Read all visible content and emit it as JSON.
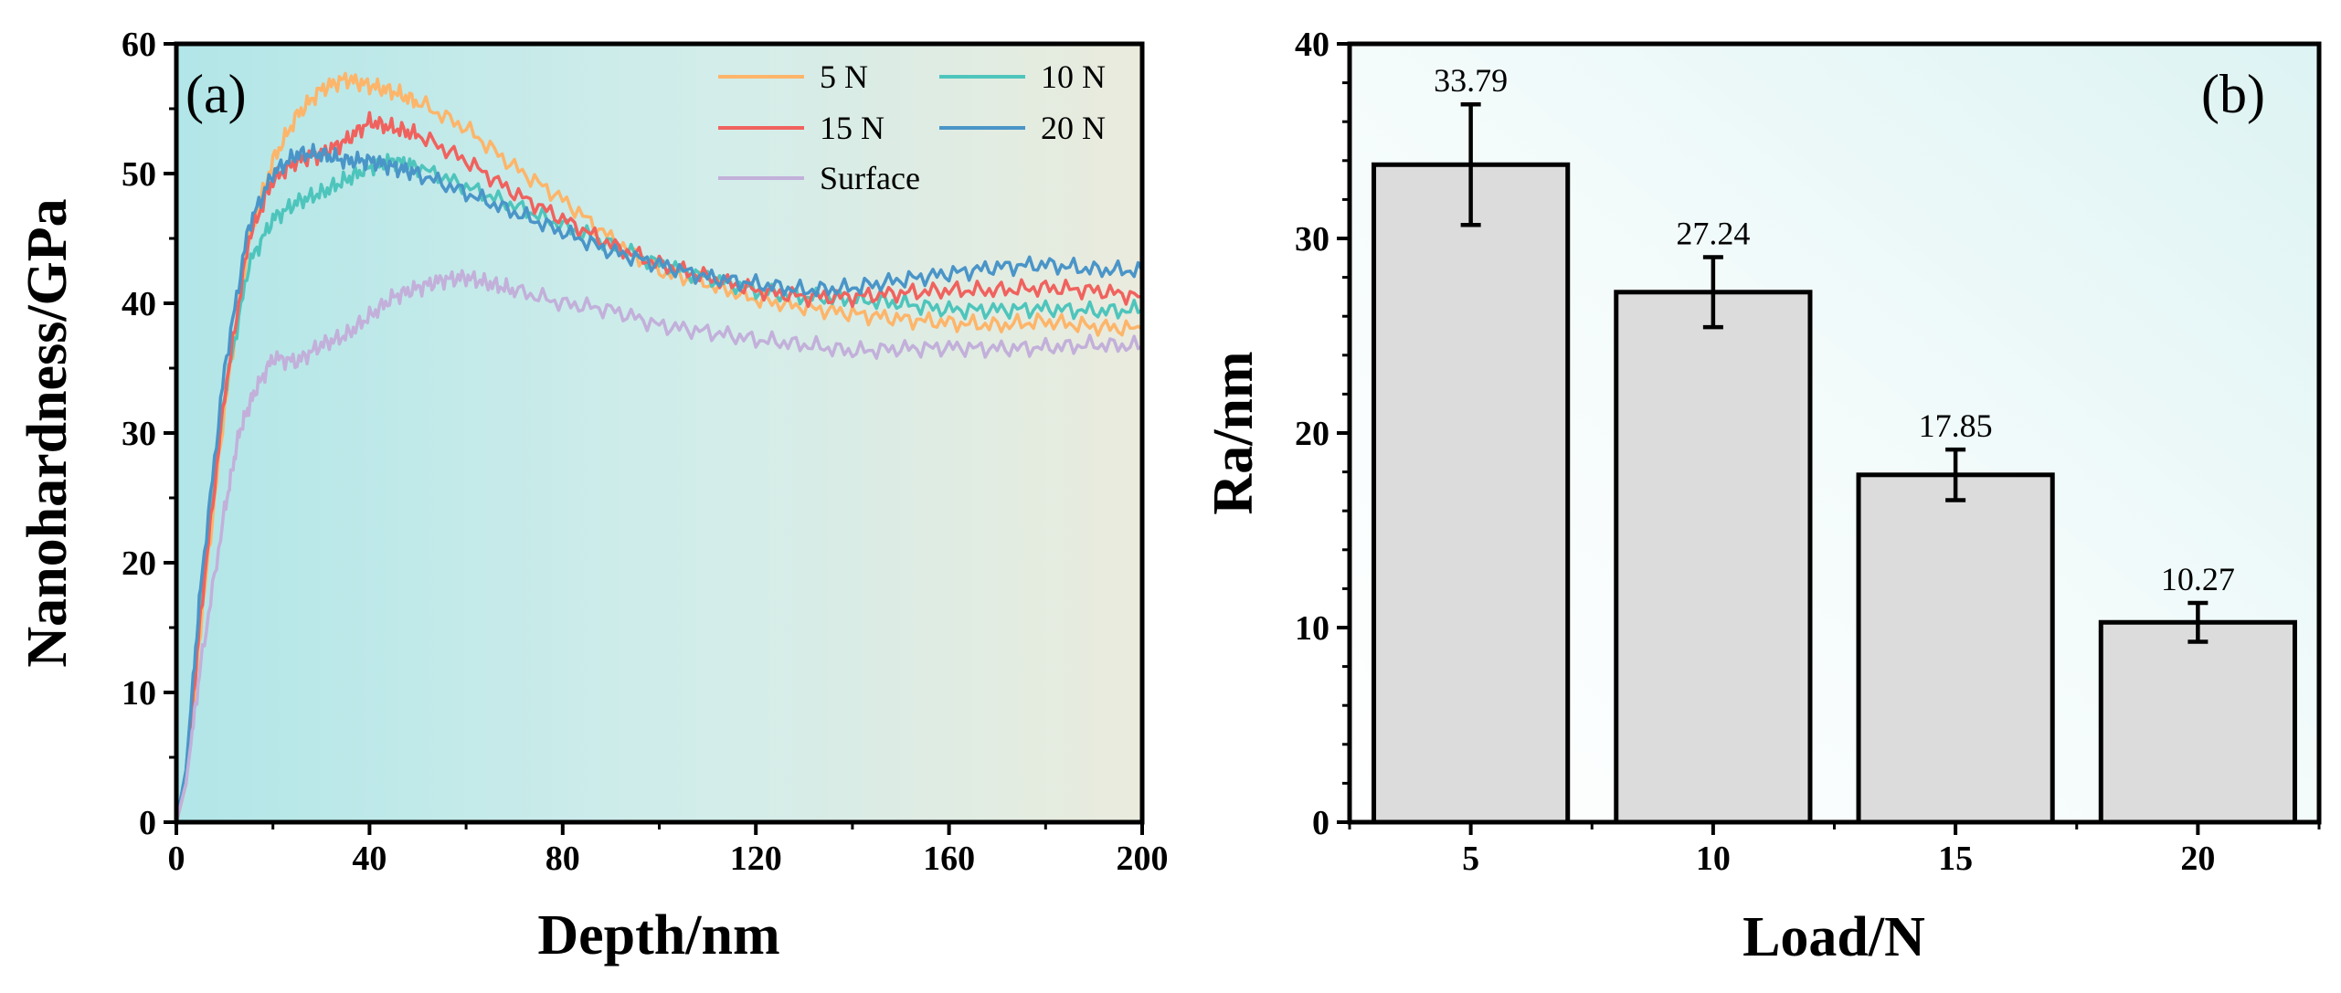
{
  "chart_data": [
    {
      "panel": "(a)",
      "type": "line",
      "xlabel": "Depth/nm",
      "ylabel": "Nanohardness/GPa",
      "xlim": [
        0,
        200
      ],
      "ylim": [
        0,
        60
      ],
      "x_ticks": [
        "0",
        "40",
        "80",
        "120",
        "160",
        "200"
      ],
      "y_ticks": [
        "0",
        "10",
        "20",
        "30",
        "40",
        "50",
        "60"
      ],
      "grid": false,
      "legend_position": "top-right",
      "series": [
        {
          "name": "5 N",
          "color": "#FDB56A",
          "x": [
            0,
            2,
            5,
            10,
            15,
            20,
            25,
            30,
            35,
            40,
            45,
            50,
            60,
            70,
            80,
            90,
            100,
            110,
            120,
            130,
            140,
            150,
            160,
            170,
            180,
            190,
            200
          ],
          "y": [
            0,
            3,
            15,
            32,
            45,
            51,
            54.5,
            56.5,
            57.3,
            56.8,
            56.3,
            55.5,
            53.5,
            50.5,
            48,
            45,
            42.5,
            41.5,
            40.3,
            39.7,
            39.2,
            38.8,
            38.5,
            38.3,
            38.6,
            38.2,
            38
          ]
        },
        {
          "name": "10 N",
          "color": "#4EC5BC",
          "x": [
            0,
            2,
            5,
            10,
            15,
            20,
            25,
            30,
            35,
            40,
            45,
            50,
            60,
            70,
            80,
            90,
            100,
            110,
            120,
            130,
            140,
            150,
            160,
            170,
            180,
            190,
            200
          ],
          "y": [
            0,
            4,
            17,
            33,
            43,
            46.5,
            47.8,
            48.5,
            49.5,
            50.5,
            51,
            50.5,
            49,
            47.5,
            46,
            44.5,
            43,
            42,
            41,
            40.5,
            40.3,
            40,
            39.5,
            39.5,
            39.6,
            39.4,
            39.5
          ]
        },
        {
          "name": "15 N",
          "color": "#F0625E",
          "x": [
            0,
            2,
            5,
            10,
            15,
            20,
            25,
            30,
            35,
            40,
            45,
            50,
            60,
            70,
            80,
            90,
            100,
            110,
            120,
            130,
            140,
            150,
            160,
            170,
            180,
            190,
            200
          ],
          "y": [
            0,
            3,
            16,
            33,
            45,
            49.5,
            51,
            51.5,
            52.5,
            54,
            53.5,
            53,
            51,
            48.5,
            46.5,
            44.5,
            43,
            42,
            41,
            40.5,
            40.5,
            40.8,
            41,
            41,
            41.2,
            41,
            40.5
          ]
        },
        {
          "name": "20 N",
          "color": "#4A95C8",
          "x": [
            0,
            2,
            5,
            10,
            15,
            20,
            25,
            30,
            35,
            40,
            45,
            50,
            60,
            70,
            80,
            90,
            100,
            110,
            120,
            130,
            140,
            150,
            160,
            170,
            180,
            190,
            200
          ],
          "y": [
            0,
            4,
            18,
            35,
            46,
            50,
            51.5,
            51.5,
            51,
            51,
            50.5,
            50,
            48.5,
            47,
            45.5,
            44,
            43,
            42,
            41.5,
            41,
            41.2,
            41.8,
            42.3,
            42.8,
            43,
            42.6,
            42.5
          ]
        },
        {
          "name": "Surface",
          "color": "#C2B0DA",
          "x": [
            0,
            2,
            5,
            10,
            13,
            16,
            20,
            25,
            30,
            35,
            40,
            45,
            50,
            55,
            60,
            65,
            70,
            80,
            90,
            100,
            110,
            120,
            130,
            140,
            150,
            160,
            170,
            180,
            190,
            200
          ],
          "y": [
            0,
            3,
            12,
            24,
            30,
            33,
            35.8,
            35.5,
            36.8,
            37.5,
            39,
            40.5,
            41.2,
            41.8,
            42,
            41.5,
            41,
            40,
            39.5,
            38.3,
            37.8,
            37.2,
            36.8,
            36.3,
            36.5,
            36.6,
            36.5,
            36.6,
            36.8,
            36.7
          ]
        }
      ]
    },
    {
      "panel": "(b)",
      "type": "bar",
      "xlabel": "Load/N",
      "ylabel": "Ra/nm",
      "categories": [
        "5",
        "10",
        "15",
        "20"
      ],
      "values": [
        33.79,
        27.24,
        17.85,
        10.27
      ],
      "value_labels": [
        "33.79",
        "27.24",
        "17.85",
        "10.27"
      ],
      "errors": [
        3.1,
        1.8,
        1.3,
        1.0
      ],
      "ylim": [
        0,
        40
      ],
      "y_ticks": [
        "0",
        "10",
        "20",
        "30",
        "40"
      ],
      "bar_color": "#DCDCDC",
      "grid": false
    }
  ]
}
